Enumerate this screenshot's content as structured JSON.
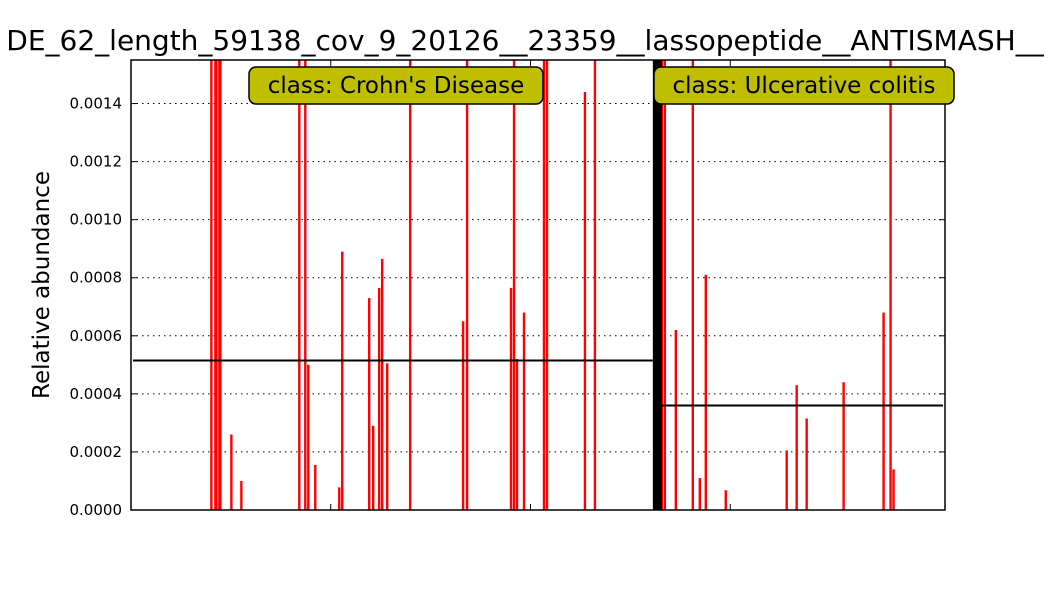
{
  "chart_data": {
    "type": "bar",
    "title": "DE_62_length_59138_cov_9_20126__23359__lassopeptide__ANTISMASH__",
    "xlabel": "",
    "ylabel": "Relative abundance",
    "ylim": [
      0,
      0.00155
    ],
    "yticks": [
      "0.0000",
      "0.0002",
      "0.0004",
      "0.0006",
      "0.0008",
      "0.0010",
      "0.0012",
      "0.0014"
    ],
    "grid": "horizontal-dotted",
    "colors": {
      "bar": "#ff0000",
      "mean": "#000000",
      "label_box": "#bfbf00",
      "divider": "#000000"
    },
    "groups": [
      {
        "label": "class: Crohn's Disease",
        "mean": 0.000515,
        "bars": [
          {
            "i": 80,
            "v": 0.00155
          },
          {
            "i": 84,
            "v": 0.00155
          },
          {
            "i": 85,
            "v": 0.00155
          },
          {
            "i": 88,
            "v": 0.00155
          },
          {
            "i": 89,
            "v": 0.00155
          },
          {
            "i": 100,
            "v": 0.00026
          },
          {
            "i": 110,
            "v": 0.0001
          },
          {
            "i": 168,
            "v": 0.00155
          },
          {
            "i": 174,
            "v": 0.00155
          },
          {
            "i": 177,
            "v": 0.0005
          },
          {
            "i": 184,
            "v": 0.000155
          },
          {
            "i": 208,
            "v": 7.8e-05
          },
          {
            "i": 211,
            "v": 0.00089
          },
          {
            "i": 238,
            "v": 0.00073
          },
          {
            "i": 242,
            "v": 0.00029
          },
          {
            "i": 248,
            "v": 0.000765
          },
          {
            "i": 251,
            "v": 0.000865
          },
          {
            "i": 256,
            "v": 0.000505
          },
          {
            "i": 279,
            "v": 0.00155
          },
          {
            "i": 332,
            "v": 0.00065
          },
          {
            "i": 336,
            "v": 0.00155
          },
          {
            "i": 380,
            "v": 0.000765
          },
          {
            "i": 383,
            "v": 0.00155
          },
          {
            "i": 386,
            "v": 0.00052
          },
          {
            "i": 393,
            "v": 0.00068
          },
          {
            "i": 413,
            "v": 0.00155
          },
          {
            "i": 416,
            "v": 0.00155
          },
          {
            "i": 454,
            "v": 0.00144
          },
          {
            "i": 464,
            "v": 0.00155
          }
        ]
      },
      {
        "label": "class: Ulcerative colitis",
        "mean": 0.00036,
        "bars": [
          {
            "i": 531,
            "v": 0.00155
          },
          {
            "i": 534,
            "v": 0.00155
          },
          {
            "i": 545,
            "v": 0.00062
          },
          {
            "i": 562,
            "v": 0.00155
          },
          {
            "i": 569,
            "v": 0.00011
          },
          {
            "i": 575,
            "v": 0.00081
          },
          {
            "i": 595,
            "v": 6.8e-05
          },
          {
            "i": 656,
            "v": 0.000205
          },
          {
            "i": 666,
            "v": 0.00043
          },
          {
            "i": 676,
            "v": 0.000315
          },
          {
            "i": 713,
            "v": 0.00044
          },
          {
            "i": 753,
            "v": 0.00068
          },
          {
            "i": 760,
            "v": 0.00155
          },
          {
            "i": 763,
            "v": 0.00014
          }
        ]
      }
    ],
    "sample_count": 815,
    "divider_index": 527
  }
}
